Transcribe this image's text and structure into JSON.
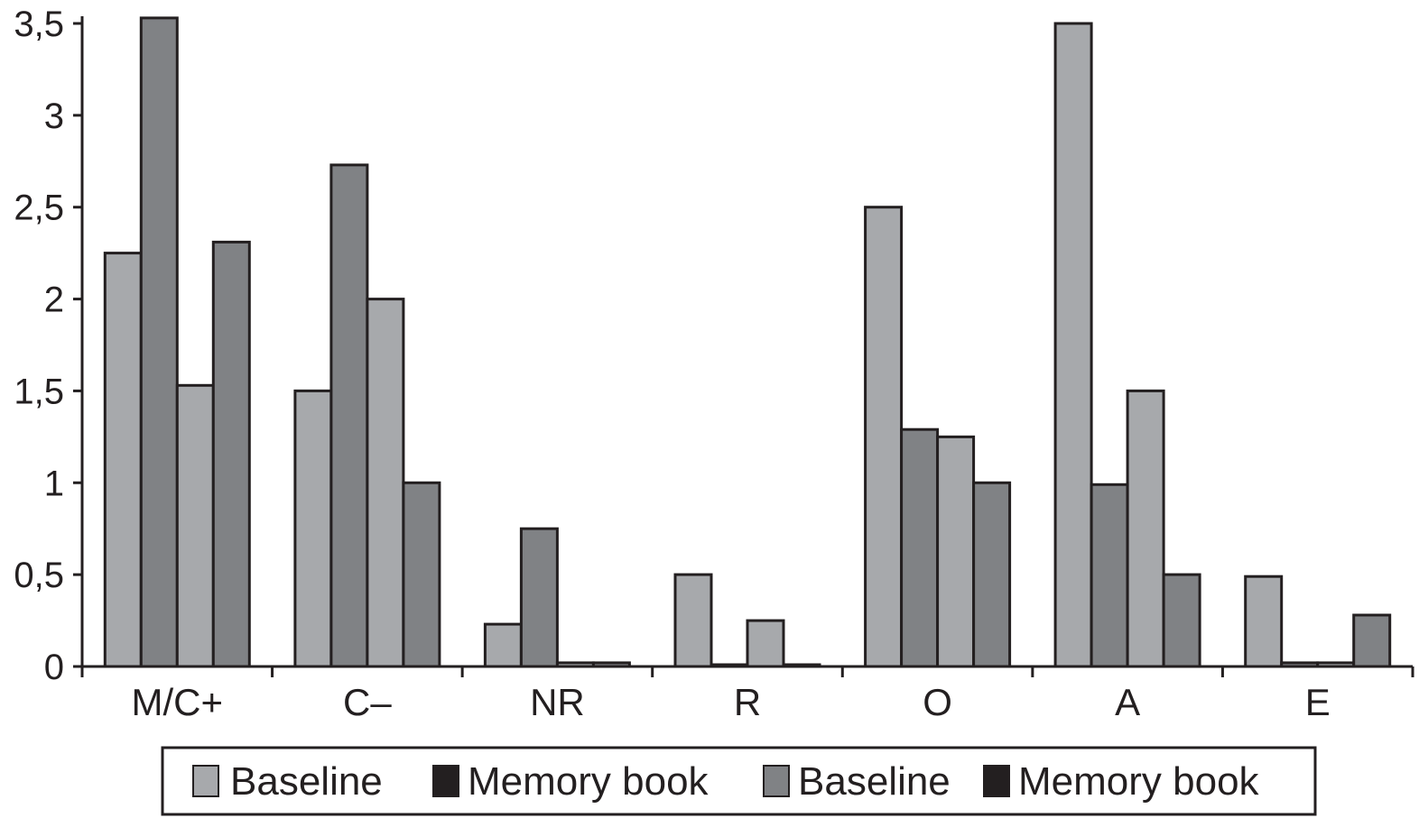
{
  "chart_data": {
    "type": "bar",
    "title": "",
    "xlabel": "",
    "ylabel": "",
    "ylim": [
      0,
      3.5
    ],
    "yticks": [
      "0",
      "0,5",
      "1",
      "1,5",
      "2",
      "2,5",
      "3",
      "3,5"
    ],
    "grid": false,
    "legend_position": "bottom",
    "categories": [
      "M/C+",
      "C–",
      "NR",
      "R",
      "O",
      "A",
      "E"
    ],
    "series": [
      {
        "name": "Baseline",
        "color": "#a7a9ac",
        "values": [
          2.25,
          1.5,
          0.23,
          0.5,
          2.5,
          3.5,
          0.49
        ]
      },
      {
        "name": "Memory book",
        "color": "#808285",
        "values": [
          3.53,
          2.73,
          0.75,
          0.01,
          1.29,
          0.99,
          0.02
        ]
      },
      {
        "name": "Baseline",
        "color": "#a7a9ac",
        "values": [
          1.53,
          2.0,
          0.02,
          0.25,
          1.25,
          1.5,
          0.02
        ]
      },
      {
        "name": "Memory book",
        "color": "#808285",
        "values": [
          2.31,
          1.0,
          0.02,
          0.01,
          1.0,
          0.5,
          0.28
        ]
      }
    ],
    "legend": [
      {
        "label": "Baseline",
        "swatch": "#a7a9ac"
      },
      {
        "label": "Memory book",
        "swatch": "#231f20"
      },
      {
        "label": "Baseline",
        "swatch": "#808285"
      },
      {
        "label": "Memory book",
        "swatch": "#231f20"
      }
    ]
  }
}
